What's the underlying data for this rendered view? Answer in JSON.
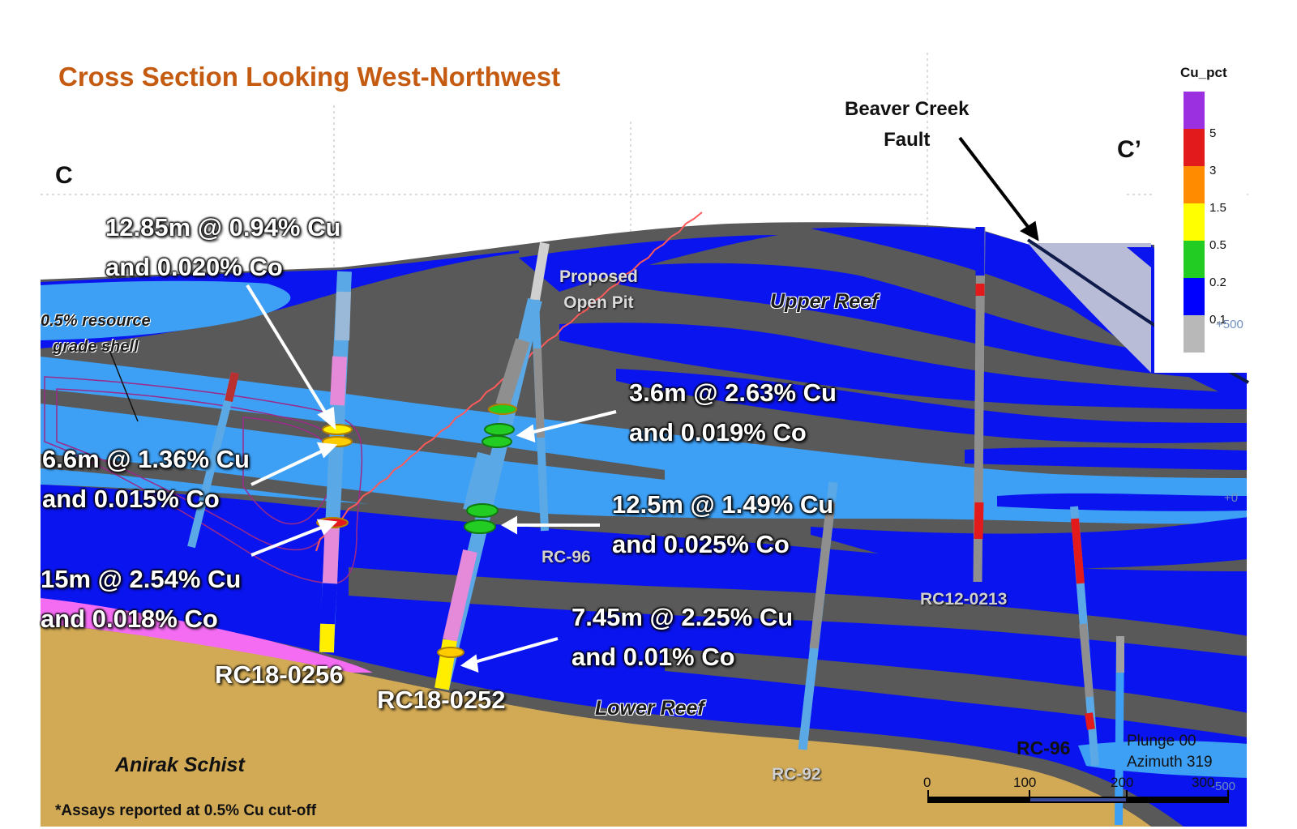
{
  "title": "Cross Section Looking West-Northwest",
  "section_labels": {
    "start": "C",
    "end": "C’"
  },
  "fault_label": [
    "Beaver Creek",
    "Fault"
  ],
  "units": {
    "upper_reef": "Upper Reef",
    "lower_reef": "Lower Reef",
    "schist": "Anirak Schist",
    "grade_shell": [
      "0.5% resource",
      "grade shell"
    ],
    "open_pit": [
      "Proposed",
      "Open Pit"
    ]
  },
  "intercepts": [
    {
      "lines": [
        "12.85m @ 0.94% Cu",
        "and 0.020% Co"
      ]
    },
    {
      "lines": [
        "6.6m @ 1.36% Cu",
        "and 0.015% Co"
      ]
    },
    {
      "lines": [
        "15m @ 2.54% Cu",
        "and 0.018% Co"
      ]
    },
    {
      "lines": [
        "3.6m @ 2.63% Cu",
        "and 0.019% Co"
      ]
    },
    {
      "lines": [
        "12.5m @ 1.49% Cu",
        "and 0.025% Co"
      ]
    },
    {
      "lines": [
        "7.45m @ 2.25% Cu",
        "and 0.01% Co"
      ]
    }
  ],
  "drill_holes": {
    "rc18_0256": "RC18-0256",
    "rc18_0252": "RC18-0252",
    "rc96_left": "RC-96",
    "rc92": "RC-92",
    "rc12_0213": "RC12-0213",
    "rc96_right": "RC-96"
  },
  "legend": {
    "title": "Cu_pct",
    "bins": [
      {
        "value": "5",
        "color": "#9b30e0"
      },
      {
        "value": "3",
        "color": "#e31a1c"
      },
      {
        "value": "1.5",
        "color": "#ff8c00"
      },
      {
        "value": "0.5",
        "color": "#ffff00"
      },
      {
        "value": "0.2",
        "color": "#22cc22"
      },
      {
        "value": "0.1",
        "color": "#0000ff"
      },
      {
        "value": "",
        "color": "#b8b8b8"
      }
    ]
  },
  "view": {
    "plunge": "Plunge 00",
    "azimuth": "Azimuth 319"
  },
  "scale_bar": [
    "0",
    "100",
    "200",
    "300"
  ],
  "coords": {
    "c1": "+500",
    "c2": "+0",
    "c3": "-500"
  },
  "footnote": "*Assays reported at 0.5% Cu cut-off",
  "colors": {
    "dark_rock": "#595959",
    "upper_reef_blue": "#0a14ee",
    "light_blue": "#3ea0f5",
    "schist_tan": "#d2aa55",
    "pink": "#f36cf2",
    "title_orange": "#c55a11"
  }
}
